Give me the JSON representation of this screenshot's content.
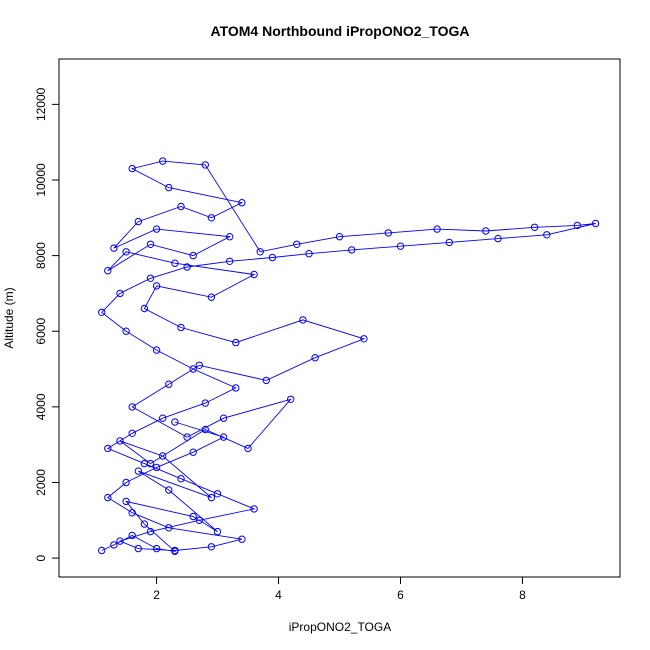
{
  "chart_data": {
    "type": "line",
    "title": "ATOM4 Northbound iPropONO2_TOGA",
    "xlabel": "iPropONO2_TOGA",
    "ylabel": "Altitude (m)",
    "xlim": [
      0.4,
      9.6
    ],
    "ylim": [
      -500,
      13200
    ],
    "x_ticks": [
      2,
      4,
      6,
      8
    ],
    "x_tick_labels": [
      "2",
      "4",
      "6",
      "8"
    ],
    "y_ticks": [
      0,
      2000,
      4000,
      6000,
      8000,
      10000,
      12000
    ],
    "y_tick_labels": [
      "0",
      "2000",
      "4000",
      "6000",
      "8000",
      "10000",
      "12000"
    ],
    "grid": false,
    "legend": "none",
    "marker": "open-circle",
    "series_color": "#0000ff",
    "series": [
      {
        "x": [
          1.1,
          1.3,
          1.6,
          2.0,
          2.3,
          1.8,
          1.5,
          2.6,
          3.0,
          2.2,
          1.7,
          2.9,
          2.1,
          1.4,
          1.9,
          2.8,
          3.5,
          4.2,
          3.1,
          2.5,
          1.6,
          2.2,
          2.7,
          3.8,
          4.6,
          5.4,
          4.4,
          3.3,
          2.4,
          1.8,
          2.0,
          2.9,
          3.6,
          2.3,
          1.5,
          1.2,
          1.9,
          2.6,
          3.2,
          2.0,
          1.3,
          1.7,
          2.4,
          2.9,
          3.4,
          2.2,
          1.6,
          2.1,
          2.8,
          3.7,
          4.3,
          5.0,
          5.8,
          6.6,
          7.4,
          8.2,
          8.9,
          9.2,
          8.4,
          7.6,
          6.8,
          6.0,
          5.2,
          4.5,
          3.9,
          3.2,
          2.5,
          1.9,
          1.4,
          1.1,
          1.5,
          2.0,
          2.6,
          3.3,
          2.8,
          2.1,
          1.6,
          1.2,
          1.8,
          2.4,
          3.0,
          3.6,
          2.7,
          1.9,
          1.4,
          1.7,
          2.3,
          2.9,
          3.4,
          2.2,
          1.6,
          1.2,
          1.5,
          2.0,
          2.6,
          3.1,
          2.3
        ],
        "y": [
          200,
          350,
          600,
          250,
          180,
          900,
          1500,
          1100,
          700,
          1800,
          2300,
          1600,
          2700,
          3100,
          2500,
          3400,
          2900,
          4200,
          3700,
          3200,
          4000,
          4600,
          5100,
          4700,
          5300,
          5800,
          6300,
          5700,
          6100,
          6600,
          7200,
          6900,
          7500,
          7800,
          8100,
          7600,
          8300,
          8000,
          8500,
          8700,
          8200,
          8900,
          9300,
          9000,
          9400,
          9800,
          10300,
          10500,
          10400,
          8100,
          8300,
          8500,
          8600,
          8700,
          8650,
          8750,
          8800,
          8850,
          8550,
          8450,
          8350,
          8250,
          8150,
          8050,
          7950,
          7850,
          7700,
          7400,
          7000,
          6500,
          6000,
          5500,
          5000,
          4500,
          4100,
          3700,
          3300,
          2900,
          2500,
          2100,
          1700,
          1300,
          1000,
          700,
          450,
          250,
          200,
          300,
          500,
          800,
          1200,
          1600,
          2000,
          2400,
          2800,
          3200,
          3600
        ]
      }
    ]
  }
}
